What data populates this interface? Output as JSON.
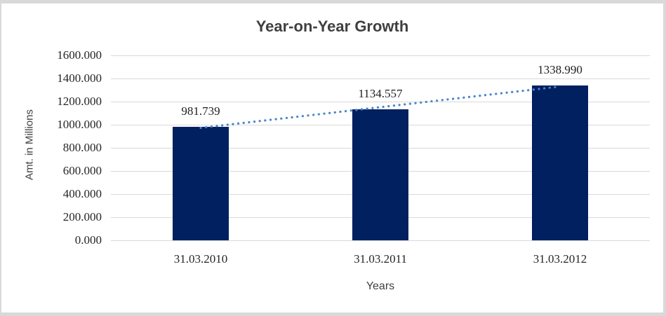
{
  "chart_data": {
    "type": "bar",
    "title": "Year-on-Year Growth",
    "xlabel": "Years",
    "ylabel": "Amt. in Millions",
    "categories": [
      "31.03.2010",
      "31.03.2011",
      "31.03.2012"
    ],
    "values": [
      981.739,
      1134.557,
      1338.99
    ],
    "data_labels": [
      "981.739",
      "1134.557",
      "1338.990"
    ],
    "ylim": [
      0,
      1600
    ],
    "ytick_step": 200,
    "ytick_labels": [
      "0.000",
      "200.000",
      "400.000",
      "600.000",
      "800.000",
      "1000.000",
      "1200.000",
      "1400.000",
      "1600.000"
    ],
    "grid": true,
    "legend": "none",
    "trendline": {
      "type": "linear",
      "style": "dotted",
      "color": "#4a86c8"
    },
    "colors": {
      "bar": "#002060",
      "gridline": "#d9d9d9",
      "title_text": "#3f3f3f",
      "tick_text": "#262626",
      "frame_border": "#d9d9d9",
      "background": "#ffffff"
    }
  }
}
